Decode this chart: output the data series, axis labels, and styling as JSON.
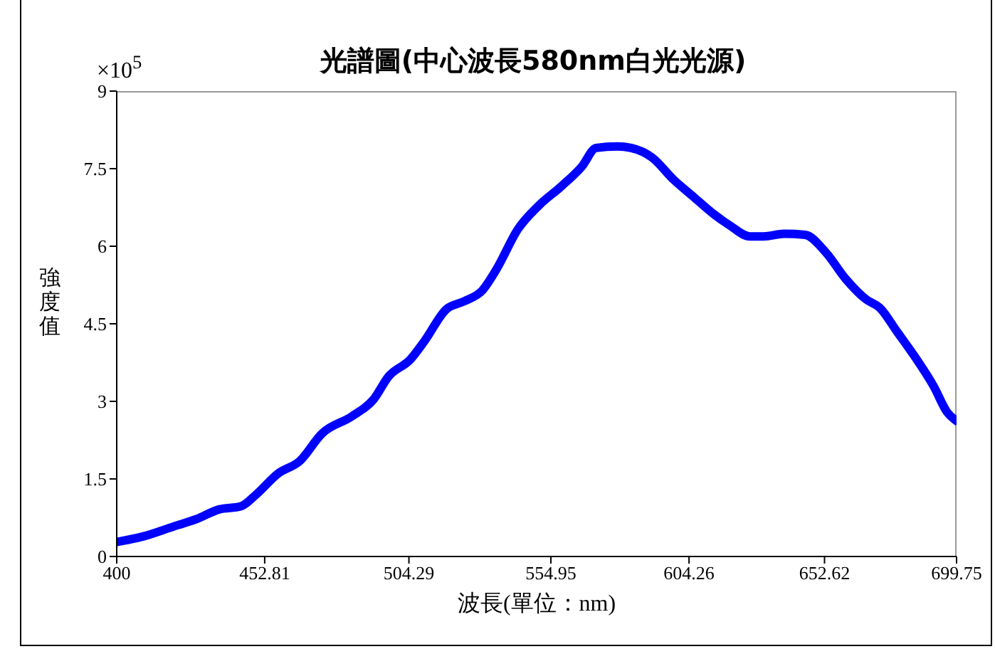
{
  "chart_data": {
    "type": "line",
    "title": "光譜圖(中心波長580nm白光光源)",
    "xlabel": "波長(單位：nm)",
    "ylabel": "強度值",
    "annotations": [
      "×10$^{5}$"
    ],
    "x": [
      400,
      409.6,
      420.3,
      428.3,
      436.5,
      444.3,
      449.6,
      457.5,
      465.4,
      473.3,
      483.9,
      491.7,
      497.0,
      504.8,
      509.9,
      517.6,
      524.2,
      530.4,
      535.5,
      543.2,
      550.9,
      558.5,
      566.0,
      571.1,
      578.6,
      583.6,
      591.2,
      598.7,
      606.2,
      613.6,
      618.6,
      626.0,
      630.9,
      638.3,
      645.7,
      653.1,
      660.3,
      667.5,
      672.3,
      678.6,
      684.4,
      691.6,
      696.4,
      699.75
    ],
    "series": [
      {
        "color": "#0000ff",
        "values": [
          0.28,
          0.39,
          0.58,
          0.72,
          0.91,
          0.97,
          1.19,
          1.6,
          1.85,
          2.38,
          2.71,
          3.04,
          3.48,
          3.81,
          4.17,
          4.78,
          4.94,
          5.14,
          5.55,
          6.33,
          6.8,
          7.15,
          7.54,
          7.9,
          7.93,
          7.9,
          7.71,
          7.29,
          6.94,
          6.6,
          6.41,
          6.19,
          6.19,
          6.24,
          6.22,
          5.88,
          5.36,
          4.97,
          4.81,
          4.34,
          3.9,
          3.29,
          2.79,
          2.62
        ]
      }
    ],
    "xlim": [
      400,
      699.75
    ],
    "xticks": [
      400,
      452.81,
      504.29,
      554.95,
      604.26,
      652.62,
      699.75
    ],
    "ylim": [
      0,
      9
    ],
    "yticks": [
      0,
      1.5,
      3,
      4.5,
      6,
      7.5,
      9
    ],
    "grid": false,
    "legend": false,
    "marker": "none",
    "line_style": "solid"
  }
}
